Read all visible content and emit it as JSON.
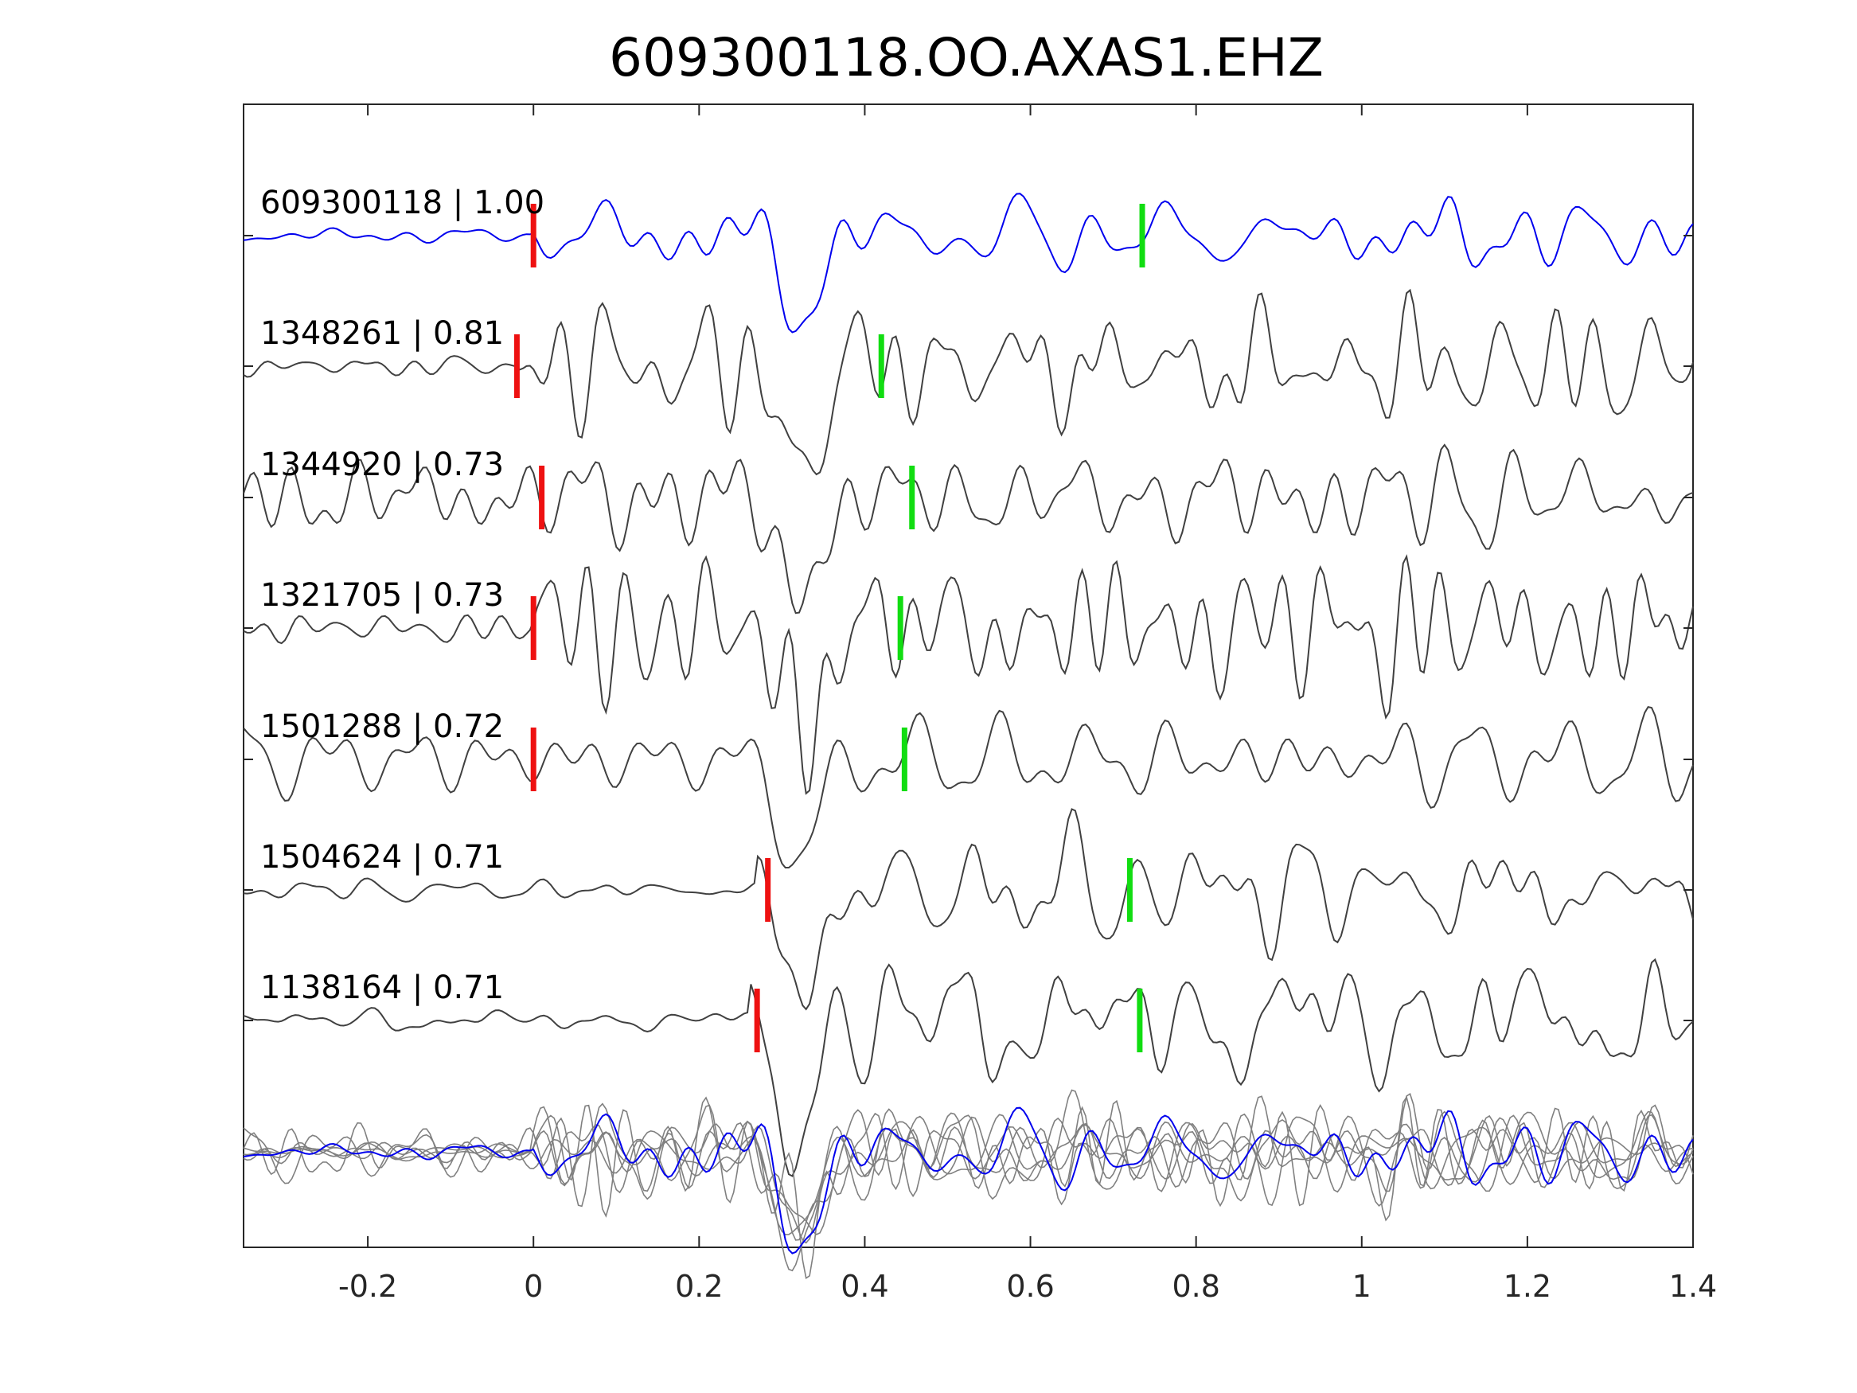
{
  "chart_data": {
    "type": "line",
    "title": "609300118.OO.AXAS1.EHZ",
    "xlabel": "",
    "ylabel": "",
    "xlim": [
      -0.35,
      1.4
    ],
    "xticks": [
      "-0.2",
      "0",
      "0.2",
      "0.4",
      "0.6",
      "0.8",
      "1",
      "1.2",
      "1.4"
    ],
    "xtick_values": [
      -0.2,
      0,
      0.2,
      0.4,
      0.6,
      0.8,
      1,
      1.2,
      1.4
    ],
    "grid": false,
    "colors": {
      "template": "#0000ee",
      "match": "#404040",
      "stack": "#808080",
      "p_pick": "#ee1111",
      "s_pick": "#11dd11",
      "axes": "#262626"
    },
    "series": [
      {
        "name": "609300118 | 1.00",
        "role": "template",
        "p_pick": 0.0,
        "s_pick": 0.735,
        "seed": 11,
        "onset": 0.0
      },
      {
        "name": "1348261 | 0.81",
        "role": "match",
        "p_pick": -0.02,
        "s_pick": 0.42,
        "seed": 23,
        "onset": -0.02
      },
      {
        "name": "1344920 | 0.73",
        "role": "match",
        "p_pick": 0.01,
        "s_pick": 0.457,
        "seed": 37,
        "onset": -0.35
      },
      {
        "name": "1321705 | 0.73",
        "role": "match",
        "p_pick": 0.0,
        "s_pick": 0.443,
        "seed": 41,
        "onset": 0.0
      },
      {
        "name": "1501288 | 0.72",
        "role": "match",
        "p_pick": 0.0,
        "s_pick": 0.448,
        "seed": 53,
        "onset": -0.35
      },
      {
        "name": "1504624 | 0.71",
        "role": "match",
        "p_pick": 0.283,
        "s_pick": 0.72,
        "seed": 67,
        "onset": 0.27
      },
      {
        "name": "1138164 | 0.71",
        "role": "match",
        "p_pick": 0.27,
        "s_pick": 0.732,
        "seed": 79,
        "onset": 0.26
      }
    ],
    "overlay": {
      "name": "stack",
      "count": 7
    }
  }
}
